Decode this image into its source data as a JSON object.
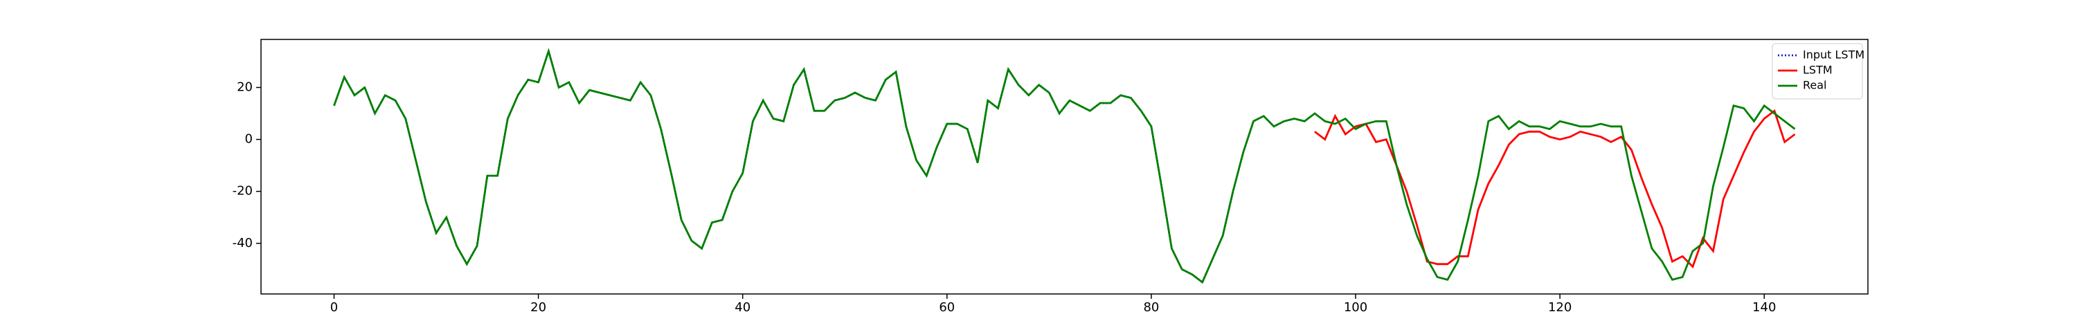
{
  "chart_data": {
    "type": "line",
    "x": [
      0,
      1,
      2,
      3,
      4,
      5,
      6,
      7,
      8,
      9,
      10,
      11,
      12,
      13,
      14,
      15,
      16,
      17,
      18,
      19,
      20,
      21,
      22,
      23,
      24,
      25,
      26,
      27,
      28,
      29,
      30,
      31,
      32,
      33,
      34,
      35,
      36,
      37,
      38,
      39,
      40,
      41,
      42,
      43,
      44,
      45,
      46,
      47,
      48,
      49,
      50,
      51,
      52,
      53,
      54,
      55,
      56,
      57,
      58,
      59,
      60,
      61,
      62,
      63,
      64,
      65,
      66,
      67,
      68,
      69,
      70,
      71,
      72,
      73,
      74,
      75,
      76,
      77,
      78,
      79,
      80,
      81,
      82,
      83,
      84,
      85,
      86,
      87,
      88,
      89,
      90,
      91,
      92,
      93,
      94,
      95,
      96,
      97,
      98,
      99,
      100,
      101,
      102,
      103,
      104,
      105,
      106,
      107,
      108,
      109,
      110,
      111,
      112,
      113,
      114,
      115,
      116,
      117,
      118,
      119,
      120,
      121,
      122,
      123,
      124,
      125,
      126,
      127,
      128,
      129,
      130,
      131,
      132,
      133,
      134,
      135,
      136,
      137,
      138,
      139,
      140,
      141,
      142,
      143
    ],
    "series": [
      {
        "name": "Input LSTM",
        "color": "#1f1fb4",
        "dash": "dotted",
        "values": [
          13,
          24,
          17,
          20,
          10,
          17,
          15,
          8,
          -8,
          -24,
          -36,
          -30,
          -41,
          -48,
          -41,
          -14,
          -14,
          8,
          17,
          23,
          22,
          34,
          20,
          22,
          14,
          19,
          18,
          17,
          16,
          15,
          22,
          17,
          4,
          -13,
          -31,
          -39,
          -42,
          -32,
          -31,
          -20,
          -13,
          7,
          15,
          8,
          7,
          21,
          27,
          11,
          11,
          15,
          16,
          18,
          16,
          15,
          23,
          26,
          5,
          -8,
          -14,
          -3,
          6,
          6,
          4,
          -9,
          15,
          12,
          27,
          21,
          17,
          21,
          18,
          10,
          15,
          13,
          11,
          14,
          14,
          17,
          16,
          11,
          5,
          -18,
          -42,
          -50,
          -52,
          -55,
          -46,
          -37,
          -20,
          -5,
          7,
          9,
          5,
          7,
          8,
          7,
          null,
          null,
          null,
          null,
          null,
          null,
          null,
          null,
          null,
          null,
          null,
          null,
          null,
          null,
          null,
          null,
          null,
          null,
          null,
          null,
          null,
          null,
          null,
          null,
          null,
          null,
          null,
          null,
          null,
          null,
          null,
          null,
          null,
          null,
          null,
          null,
          null,
          null,
          null,
          null,
          null,
          null,
          null,
          null,
          null,
          null,
          null,
          null
        ]
      },
      {
        "name": "LSTM",
        "color": "#ff0000",
        "dash": "solid",
        "values": [
          null,
          null,
          null,
          null,
          null,
          null,
          null,
          null,
          null,
          null,
          null,
          null,
          null,
          null,
          null,
          null,
          null,
          null,
          null,
          null,
          null,
          null,
          null,
          null,
          null,
          null,
          null,
          null,
          null,
          null,
          null,
          null,
          null,
          null,
          null,
          null,
          null,
          null,
          null,
          null,
          null,
          null,
          null,
          null,
          null,
          null,
          null,
          null,
          null,
          null,
          null,
          null,
          null,
          null,
          null,
          null,
          null,
          null,
          null,
          null,
          null,
          null,
          null,
          null,
          null,
          null,
          null,
          null,
          null,
          null,
          null,
          null,
          null,
          null,
          null,
          null,
          null,
          null,
          null,
          null,
          null,
          null,
          null,
          null,
          null,
          null,
          null,
          null,
          null,
          null,
          null,
          null,
          null,
          null,
          null,
          null,
          3,
          0,
          9,
          2,
          5,
          6,
          -1,
          0,
          -10,
          -20,
          -33,
          -47,
          -48,
          -48,
          -45,
          -45,
          -27,
          -17,
          -10,
          -2,
          2,
          3,
          3,
          1,
          0,
          1,
          3,
          2,
          1,
          -1,
          1,
          -4,
          -15,
          -25,
          -34,
          -47,
          -45,
          -49,
          -38,
          -43,
          -23,
          -14,
          -5,
          3,
          8,
          11,
          -1,
          2
        ]
      },
      {
        "name": "Real",
        "color": "#008000",
        "dash": "solid",
        "values": [
          13,
          24,
          17,
          20,
          10,
          17,
          15,
          8,
          -8,
          -24,
          -36,
          -30,
          -41,
          -48,
          -41,
          -14,
          -14,
          8,
          17,
          23,
          22,
          34,
          20,
          22,
          14,
          19,
          18,
          17,
          16,
          15,
          22,
          17,
          4,
          -13,
          -31,
          -39,
          -42,
          -32,
          -31,
          -20,
          -13,
          7,
          15,
          8,
          7,
          21,
          27,
          11,
          11,
          15,
          16,
          18,
          16,
          15,
          23,
          26,
          5,
          -8,
          -14,
          -3,
          6,
          6,
          4,
          -9,
          15,
          12,
          27,
          21,
          17,
          21,
          18,
          10,
          15,
          13,
          11,
          14,
          14,
          17,
          16,
          11,
          5,
          -18,
          -42,
          -50,
          -52,
          -55,
          -46,
          -37,
          -20,
          -5,
          7,
          9,
          5,
          7,
          8,
          7,
          10,
          7,
          6,
          8,
          4,
          6,
          7,
          7,
          -10,
          -25,
          -37,
          -46,
          -53,
          -54,
          -47,
          -31,
          -14,
          7,
          9,
          4,
          7,
          5,
          5,
          4,
          7,
          6,
          5,
          5,
          6,
          5,
          5,
          -14,
          -28,
          -42,
          -47,
          -54,
          -53,
          -43,
          -40,
          -18,
          -3,
          13,
          12,
          7,
          13,
          10,
          7,
          4
        ]
      }
    ],
    "xlim": [
      -7.15,
      150.15
    ],
    "xticks": [
      0,
      20,
      40,
      60,
      80,
      100,
      120,
      140
    ],
    "ylim": [
      -59.5,
      38.5
    ],
    "yticks": [
      -40,
      -20,
      0,
      20
    ],
    "legend": "upper right",
    "grid": false
  }
}
